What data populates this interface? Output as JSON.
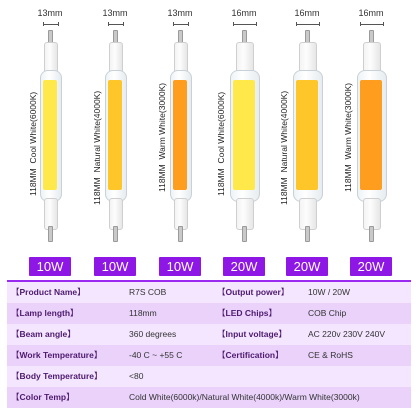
{
  "lamps": [
    {
      "diameter": "13mm",
      "length_label": "118MM",
      "color_label": "Cool White(6000K)",
      "wattage": "10W",
      "bar_color": "#ffe84a"
    },
    {
      "diameter": "13mm",
      "length_label": "118MM",
      "color_label": "Natural White(4000K)",
      "wattage": "10W",
      "bar_color": "#ffc629"
    },
    {
      "diameter": "13mm",
      "length_label": "118MM",
      "color_label": "Warm White(3000K)",
      "wattage": "10W",
      "bar_color": "#ff9d1e"
    },
    {
      "diameter": "16mm",
      "length_label": "118MM",
      "color_label": "Cool White(6000K)",
      "wattage": "20W",
      "bar_color": "#ffe84a"
    },
    {
      "diameter": "16mm",
      "length_label": "118MM",
      "color_label": "Natural White(4000K)",
      "wattage": "20W",
      "bar_color": "#ffc629"
    },
    {
      "diameter": "16mm",
      "length_label": "118MM",
      "color_label": "Warm White(3000K)",
      "wattage": "20W",
      "bar_color": "#ff9d1e"
    }
  ],
  "specs": [
    {
      "label": "Product Name",
      "value": "R7S COB",
      "label2": "Output power",
      "value2": "10W / 20W"
    },
    {
      "label": "Lamp length",
      "value": "118mm",
      "label2": "LED Chips",
      "value2": "COB Chip"
    },
    {
      "label": "Beam angle",
      "value": "360 degrees",
      "label2": "Input voltage",
      "value2": "AC 220v 230V 240V"
    },
    {
      "label": "Work Temperature",
      "value": "-40 C ~ +55 C",
      "label2": "Certification",
      "value2": "CE & RoHS"
    },
    {
      "label": "Body Temperature",
      "value": "<80"
    },
    {
      "label": "Color Temp",
      "value": "Cold White(6000k)/Natural White(4000k)/Warm White(3000k)"
    }
  ],
  "colors": {
    "accent": "#8f17e6",
    "row_light": "#f4e6ff",
    "row_dark": "#ead2fb"
  }
}
